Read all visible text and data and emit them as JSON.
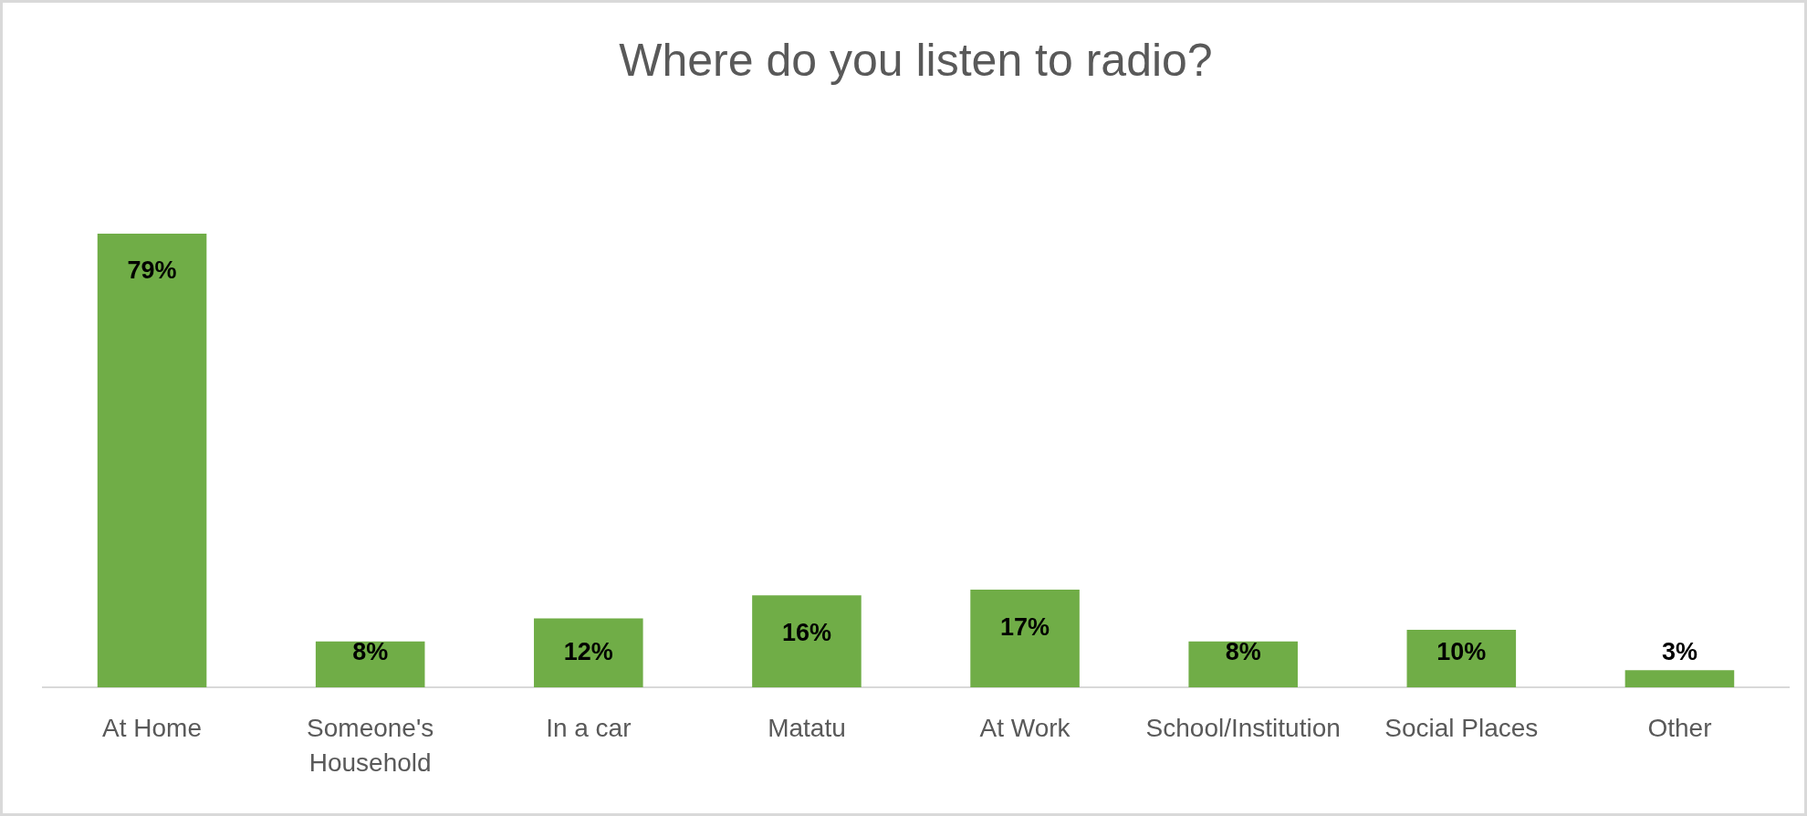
{
  "chart_data": {
    "type": "bar",
    "title": "Where do you listen to radio?",
    "categories": [
      "At Home",
      "Someone's Household",
      "In a car",
      "Matatu",
      "At Work",
      "School/Institution",
      "Social Places",
      "Other"
    ],
    "values": [
      79,
      8,
      12,
      16,
      17,
      8,
      10,
      3
    ],
    "value_labels": [
      "79%",
      "8%",
      "12%",
      "16%",
      "17%",
      "8%",
      "10%",
      "3%"
    ],
    "color": "#70ad47"
  }
}
